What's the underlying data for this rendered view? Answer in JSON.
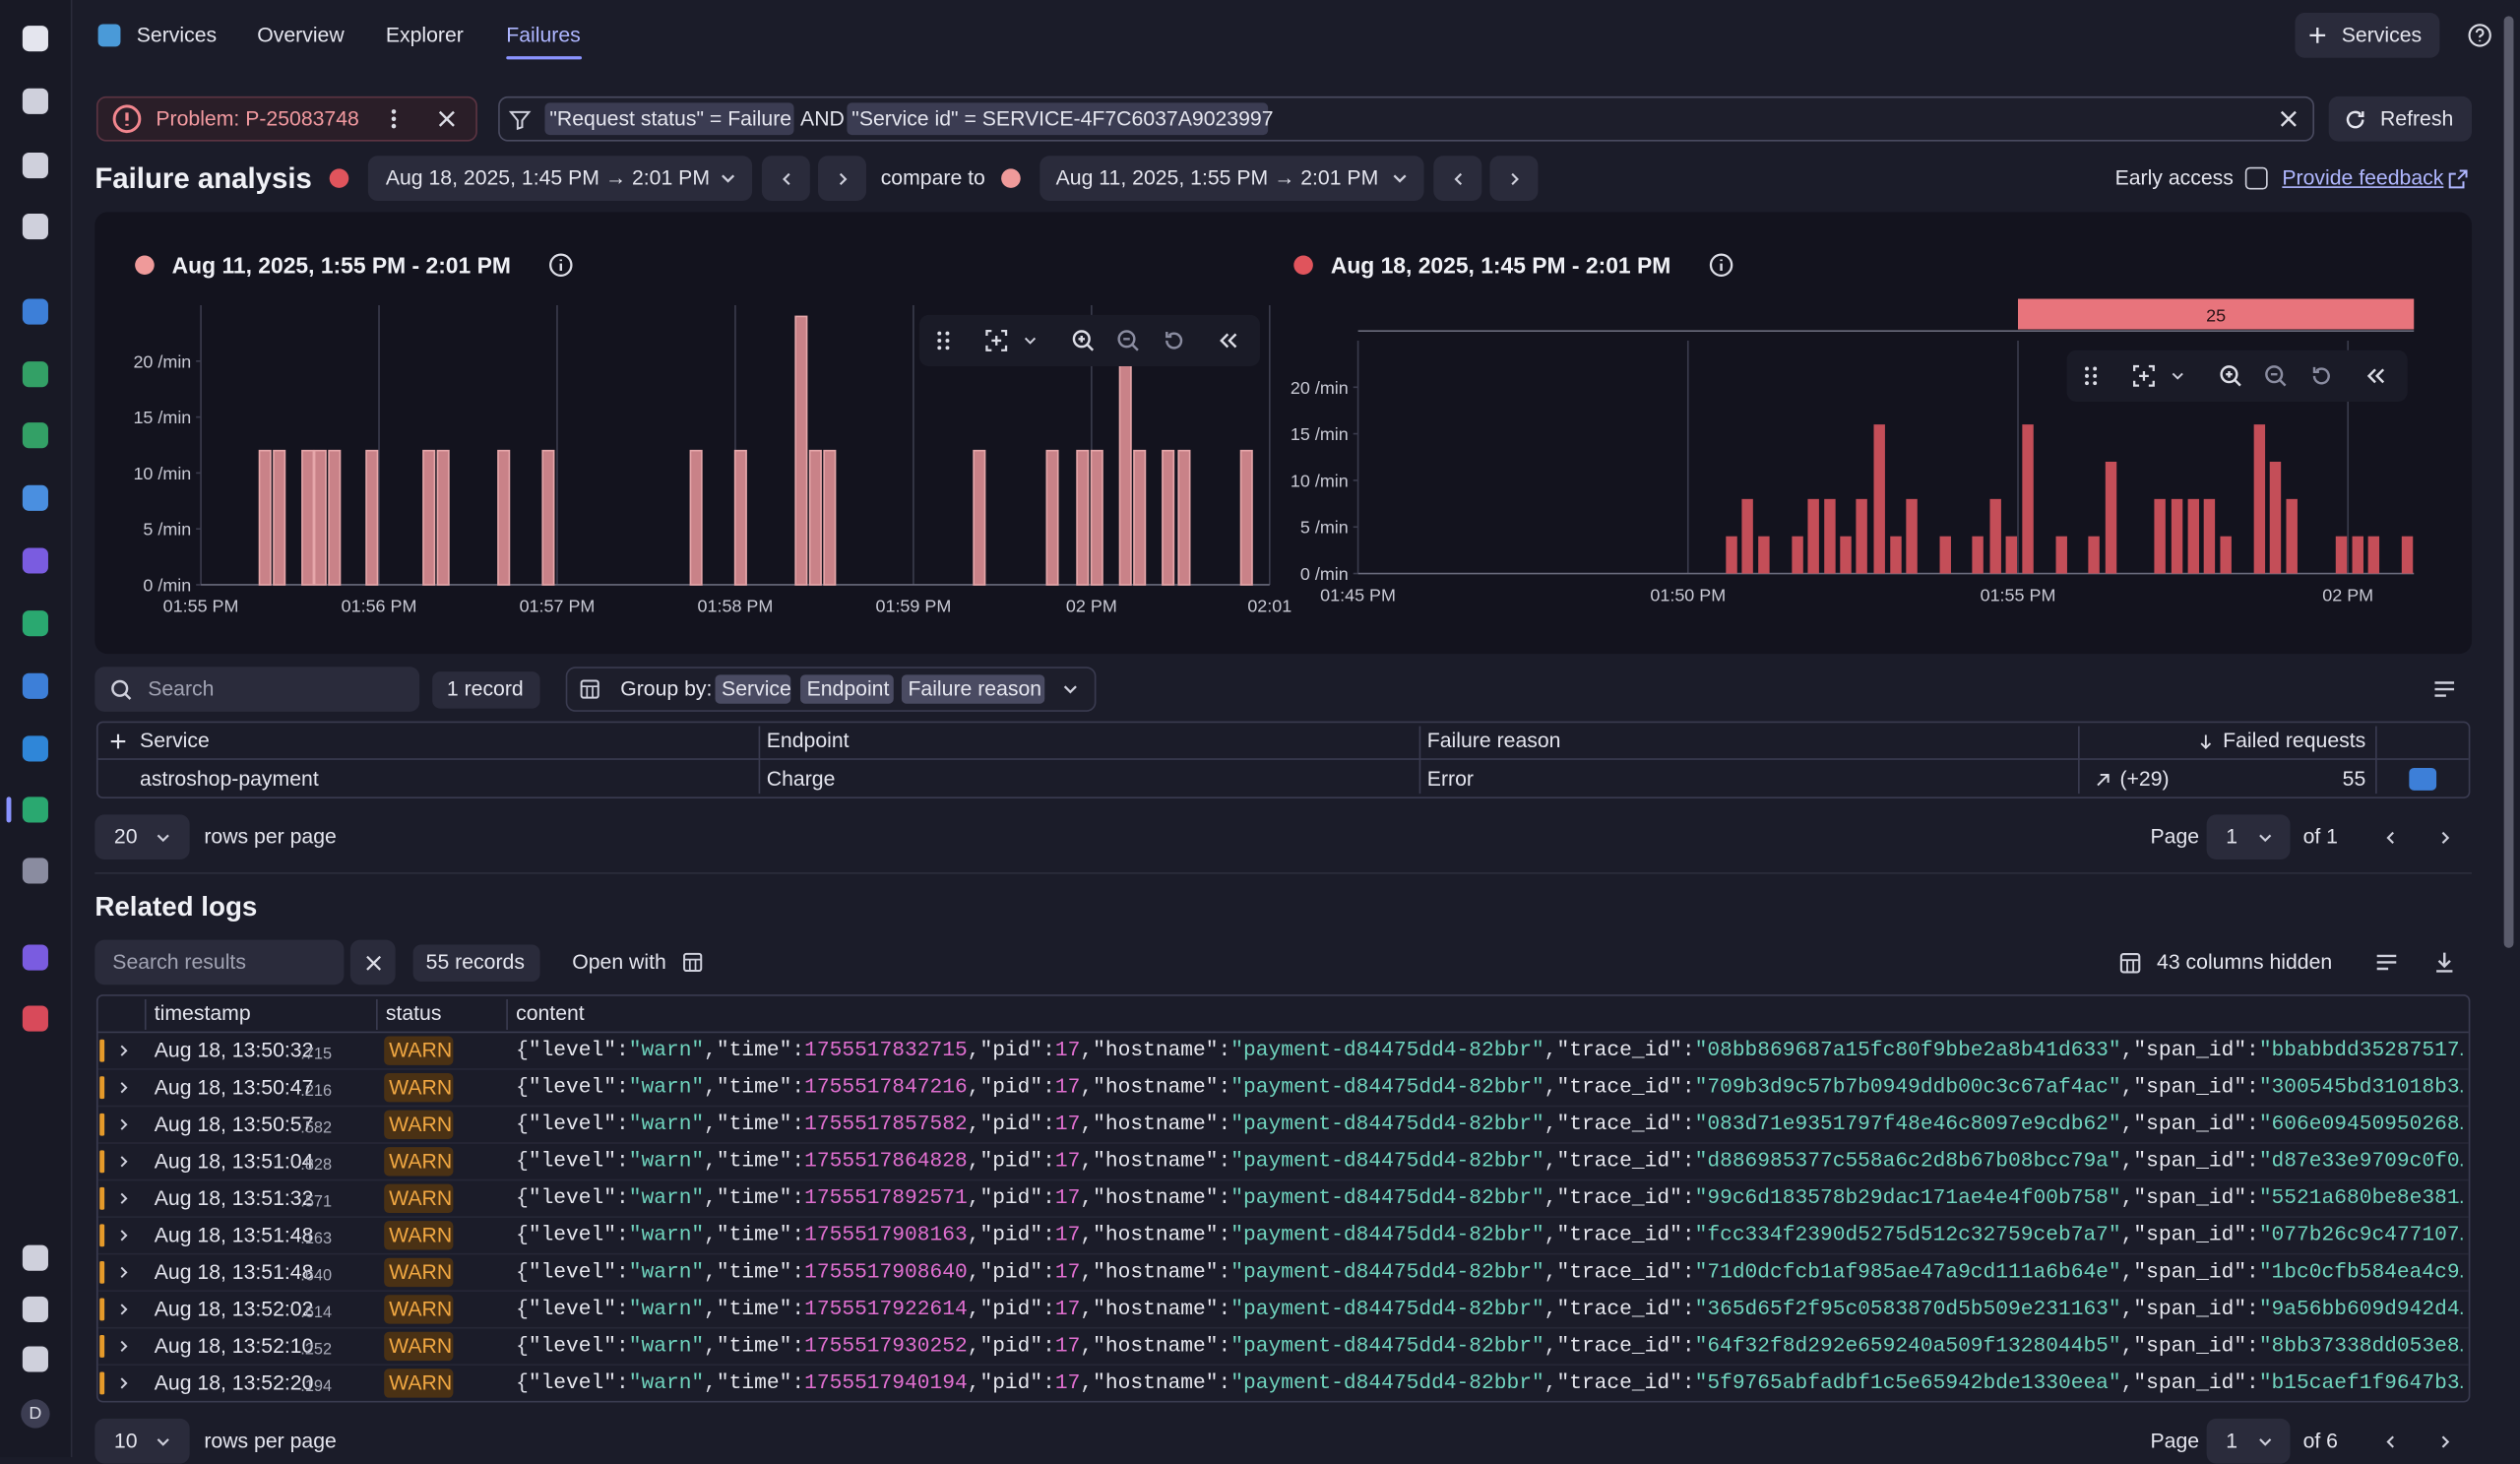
{
  "nav": {
    "tabs": [
      "Services",
      "Overview",
      "Explorer",
      "Failures"
    ],
    "add_button": "Services",
    "avatar": "D"
  },
  "filter": {
    "problem": "Problem: P-25083748",
    "query": [
      "\"Request status\" = Failure",
      "AND",
      "\"Service id\" = SERVICE-4F7C6037A9023997"
    ],
    "refresh": "Refresh"
  },
  "analysis": {
    "title": "Failure analysis",
    "range": "Aug 18, 2025, 1:45 PM → 2:01 PM",
    "compare_label": "compare to",
    "compare_range": "Aug 11, 2025, 1:55 PM → 2:01 PM",
    "early_access": "Early access",
    "feedback": "Provide feedback"
  },
  "chart_data": [
    {
      "type": "bar",
      "title": "Aug 11, 2025, 1:55 PM - 2:01 PM",
      "color": "#c98288",
      "x": [
        835.36,
        835.44,
        835.6,
        835.67,
        835.75,
        835.96,
        836.28,
        836.36,
        836.7,
        836.95,
        837.78,
        838.03,
        838.37,
        838.45,
        838.53,
        839.37,
        839.78,
        839.95,
        840.03,
        840.19,
        840.27,
        840.43,
        840.52,
        840.87
      ],
      "values": [
        12,
        12,
        12,
        12,
        12,
        12,
        12,
        12,
        12,
        12,
        12,
        12,
        24,
        12,
        12,
        12,
        12,
        12,
        12,
        24,
        12,
        12,
        12,
        12
      ],
      "xlim": [
        835,
        841
      ],
      "xticks": [
        {
          "value": 835,
          "label": "01:55 PM"
        },
        {
          "value": 836,
          "label": "01:56 PM"
        },
        {
          "value": 837,
          "label": "01:57 PM"
        },
        {
          "value": 838,
          "label": "01:58 PM"
        },
        {
          "value": 839,
          "label": "01:59 PM"
        },
        {
          "value": 840,
          "label": "02 PM"
        },
        {
          "value": 841,
          "label": "02:01"
        }
      ],
      "ylim": [
        0,
        25
      ],
      "yticks": [
        {
          "value": 0,
          "label": "0 /min"
        },
        {
          "value": 5,
          "label": "5 /min"
        },
        {
          "value": 10,
          "label": "10 /min"
        },
        {
          "value": 15,
          "label": "15 /min"
        },
        {
          "value": 20,
          "label": "20 /min"
        }
      ]
    },
    {
      "type": "bar",
      "title": "Aug 18, 2025, 1:45 PM - 2:01 PM",
      "color": "#c44e58",
      "x": [
        830.66,
        830.9,
        831.15,
        831.66,
        831.9,
        832.15,
        832.39,
        832.63,
        832.9,
        833.15,
        833.39,
        833.9,
        834.39,
        834.66,
        834.9,
        835.15,
        835.66,
        836.15,
        836.41,
        837.15,
        837.41,
        837.66,
        837.9,
        838.15,
        838.66,
        838.9,
        839.15,
        839.9,
        840.15,
        840.39,
        840.9
      ],
      "values": [
        4,
        8,
        4,
        4,
        8,
        8,
        4,
        8,
        16,
        4,
        8,
        4,
        4,
        8,
        4,
        16,
        4,
        4,
        12,
        8,
        8,
        8,
        8,
        4,
        16,
        12,
        8,
        4,
        4,
        4,
        4
      ],
      "xlim": [
        825,
        841
      ],
      "xticks": [
        {
          "value": 825,
          "label": "01:45 PM"
        },
        {
          "value": 830,
          "label": "01:50 PM"
        },
        {
          "value": 835,
          "label": "01:55 PM"
        },
        {
          "value": 840,
          "label": "02 PM"
        }
      ],
      "ylim": [
        0,
        25
      ],
      "yticks": [
        {
          "value": 0,
          "label": "0 /min"
        },
        {
          "value": 5,
          "label": "5 /min"
        },
        {
          "value": 10,
          "label": "10 /min"
        },
        {
          "value": 15,
          "label": "15 /min"
        },
        {
          "value": 20,
          "label": "20 /min"
        }
      ],
      "selection": {
        "range": [
          835,
          841
        ],
        "count": 25
      }
    }
  ],
  "failures": {
    "search": "Search",
    "record_count": "1 record",
    "group_by_label": "Group by:",
    "group_by": [
      "Service",
      "Endpoint",
      "Failure reason"
    ],
    "columns": [
      "Service",
      "Endpoint",
      "Failure reason",
      "Failed requests"
    ],
    "rows": [
      {
        "service": "astroshop-payment",
        "endpoint": "Charge",
        "reason": "Error",
        "trend": "(+29)",
        "failed": 55
      }
    ],
    "rows_per_page": 20,
    "rows_per_page_label": "rows per page",
    "page_label": "Page",
    "page": 1,
    "of": "of 1"
  },
  "logs": {
    "title": "Related logs",
    "search": "Search results",
    "record_count": "55 records",
    "open_with": "Open with",
    "hidden": "43 columns hidden",
    "columns": [
      "timestamp",
      "status",
      "content"
    ],
    "rows": [
      {
        "time": "Aug 18, 13:50:32",
        "ms": ".715",
        "status": "WARN",
        "content": "{\"level\":\"warn\",\"time\":1755517832715,\"pid\":17,\"hostname\":\"payment-d84475dd4-82bbr\",\"trace_id\":\"08bb869687a15fc80f9bbe2a8b41d633\",\"span_id\":\"bbabbdd35287517…"
      },
      {
        "time": "Aug 18, 13:50:47",
        "ms": ".216",
        "status": "WARN",
        "content": "{\"level\":\"warn\",\"time\":1755517847216,\"pid\":17,\"hostname\":\"payment-d84475dd4-82bbr\",\"trace_id\":\"709b3d9c57b7b0949ddb00c3c67af4ac\",\"span_id\":\"300545bd31018b3…"
      },
      {
        "time": "Aug 18, 13:50:57",
        "ms": ".582",
        "status": "WARN",
        "content": "{\"level\":\"warn\",\"time\":1755517857582,\"pid\":17,\"hostname\":\"payment-d84475dd4-82bbr\",\"trace_id\":\"083d71e9351797f48e46c8097e9cdb62\",\"span_id\":\"606e09450950268…"
      },
      {
        "time": "Aug 18, 13:51:04",
        "ms": ".828",
        "status": "WARN",
        "content": "{\"level\":\"warn\",\"time\":1755517864828,\"pid\":17,\"hostname\":\"payment-d84475dd4-82bbr\",\"trace_id\":\"d886985377c558a6c2d8b67b08bcc79a\",\"span_id\":\"d87e33e9709c0f0…"
      },
      {
        "time": "Aug 18, 13:51:32",
        "ms": ".571",
        "status": "WARN",
        "content": "{\"level\":\"warn\",\"time\":1755517892571,\"pid\":17,\"hostname\":\"payment-d84475dd4-82bbr\",\"trace_id\":\"99c6d183578b29dac171ae4e4f00b758\",\"span_id\":\"5521a680be8e381…"
      },
      {
        "time": "Aug 18, 13:51:48",
        "ms": ".163",
        "status": "WARN",
        "content": "{\"level\":\"warn\",\"time\":1755517908163,\"pid\":17,\"hostname\":\"payment-d84475dd4-82bbr\",\"trace_id\":\"fcc334f2390d5275d512c32759ceb7a7\",\"span_id\":\"077b26c9c477107…"
      },
      {
        "time": "Aug 18, 13:51:48",
        "ms": ".640",
        "status": "WARN",
        "content": "{\"level\":\"warn\",\"time\":1755517908640,\"pid\":17,\"hostname\":\"payment-d84475dd4-82bbr\",\"trace_id\":\"71d0dcfcb1af985ae47a9cd111a6b64e\",\"span_id\":\"1bc0cfb584ea4c9…"
      },
      {
        "time": "Aug 18, 13:52:02",
        "ms": ".614",
        "status": "WARN",
        "content": "{\"level\":\"warn\",\"time\":1755517922614,\"pid\":17,\"hostname\":\"payment-d84475dd4-82bbr\",\"trace_id\":\"365d65f2f95c0583870d5b509e231163\",\"span_id\":\"9a56bb609d942d4…"
      },
      {
        "time": "Aug 18, 13:52:10",
        "ms": ".252",
        "status": "WARN",
        "content": "{\"level\":\"warn\",\"time\":1755517930252,\"pid\":17,\"hostname\":\"payment-d84475dd4-82bbr\",\"trace_id\":\"64f32f8d292e659240a509f1328044b5\",\"span_id\":\"8bb37338dd053e8…"
      },
      {
        "time": "Aug 18, 13:52:20",
        "ms": ".194",
        "status": "WARN",
        "content": "{\"level\":\"warn\",\"time\":1755517940194,\"pid\":17,\"hostname\":\"payment-d84475dd4-82bbr\",\"trace_id\":\"5f9765abfadbf1c5e65942bde1330eea\",\"span_id\":\"b15caef1f9647b3…"
      }
    ],
    "rows_per_page": 10,
    "rows_per_page_label": "rows per page",
    "page_label": "Page",
    "page": 1,
    "of": "of 6"
  }
}
